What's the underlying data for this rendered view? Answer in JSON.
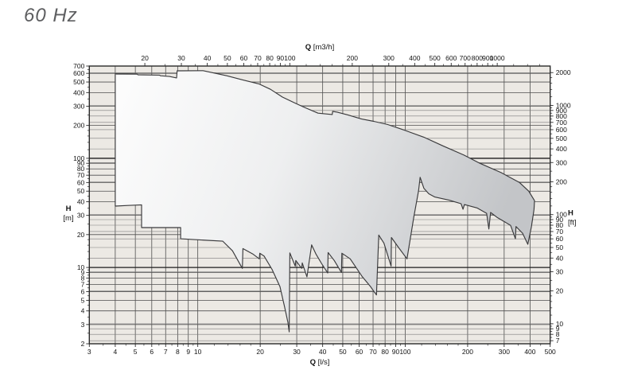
{
  "title": "60 Hz",
  "chart_data": {
    "type": "area",
    "title": "60 Hz",
    "description": "Pump family coverage envelope, head H versus flow Q, log-log scales, dual units",
    "axes": {
      "bottom": {
        "label_prefix": "Q",
        "label_unit": "[l/s]",
        "range_ls": [
          3,
          500
        ],
        "majors": [
          3,
          4,
          5,
          6,
          7,
          8,
          9,
          10,
          20,
          30,
          40,
          50,
          60,
          70,
          80,
          90,
          100,
          200,
          300,
          400,
          500
        ],
        "minors": [
          3.5,
          4.5,
          5.5,
          6.5,
          7.5,
          8.5,
          9.5,
          12,
          14,
          16,
          18,
          25,
          35,
          45,
          55,
          65,
          75,
          85,
          95,
          120,
          140,
          160,
          180,
          250,
          350,
          450
        ]
      },
      "top": {
        "label_prefix": "Q",
        "label_unit": "[m3/h]",
        "range_m3h": [
          10.8,
          1800
        ],
        "majors": [
          20,
          30,
          40,
          50,
          60,
          70,
          80,
          90,
          100,
          200,
          300,
          400,
          500,
          600,
          700,
          800,
          900,
          1000
        ],
        "minors": [
          25,
          35,
          45,
          55,
          65,
          75,
          85,
          95,
          120,
          140,
          160,
          180,
          250,
          350,
          450,
          550,
          650,
          750,
          850,
          950,
          1200,
          1400,
          1600
        ]
      },
      "left": {
        "label_prefix": "H",
        "label_unit": "[m]",
        "range_m": [
          2,
          700
        ],
        "majors": [
          2,
          3,
          4,
          5,
          6,
          7,
          8,
          9,
          10,
          20,
          30,
          40,
          50,
          60,
          70,
          80,
          90,
          100,
          200,
          300,
          400,
          500,
          600,
          700
        ],
        "minors": [
          2.5,
          3.5,
          4.5,
          5.5,
          6.5,
          7.5,
          8.5,
          9.5,
          12,
          14,
          16,
          18,
          25,
          35,
          45,
          55,
          65,
          75,
          85,
          95,
          120,
          140,
          160,
          180,
          250,
          350,
          450,
          550,
          650
        ]
      },
      "right": {
        "label_prefix": "H",
        "label_unit": "[ft]",
        "range_ft": [
          6.56,
          2297
        ],
        "majors": [
          7,
          8,
          9,
          10,
          20,
          30,
          40,
          50,
          60,
          70,
          80,
          90,
          100,
          200,
          300,
          400,
          500,
          600,
          700,
          800,
          900,
          1000,
          2000
        ],
        "minors": [
          7.5,
          8.5,
          9.5,
          12,
          14,
          16,
          18,
          25,
          35,
          45,
          55,
          65,
          75,
          85,
          95,
          120,
          140,
          160,
          180,
          250,
          350,
          450,
          550,
          650,
          750,
          850,
          950,
          1200,
          1400,
          1600,
          1800
        ]
      }
    },
    "gridlines": {
      "vertical_ls": [
        4,
        5,
        6,
        7,
        8,
        9,
        10,
        20,
        30,
        40,
        50,
        60,
        70,
        80,
        90,
        100,
        200,
        300,
        400
      ],
      "horizontal_m": [
        3,
        4,
        5,
        6,
        7,
        8,
        9,
        20,
        30,
        40,
        50,
        60,
        70,
        80,
        90,
        200,
        300,
        400,
        500,
        600
      ],
      "horizontal_m_heavy": [
        10,
        100
      ],
      "horizontal_ft": [
        7,
        8,
        9,
        10,
        20,
        30,
        40,
        50,
        60,
        70,
        80,
        90,
        100,
        200,
        300,
        400,
        500,
        600,
        700,
        800,
        900,
        1000,
        2000
      ]
    },
    "envelope_QH": [
      [
        4.0,
        597
      ],
      [
        4.05,
        592
      ],
      [
        5.1,
        590
      ],
      [
        5.15,
        582
      ],
      [
        6.55,
        578
      ],
      [
        6.6,
        570
      ],
      [
        7.3,
        562
      ],
      [
        7.9,
        545
      ],
      [
        7.95,
        633
      ],
      [
        10.6,
        635
      ],
      [
        13.8,
        570
      ],
      [
        16.4,
        524
      ],
      [
        19.7,
        481
      ],
      [
        22.4,
        429
      ],
      [
        25.6,
        364
      ],
      [
        29.7,
        318
      ],
      [
        33.3,
        288
      ],
      [
        38,
        259
      ],
      [
        44.5,
        252
      ],
      [
        44.7,
        269
      ],
      [
        47,
        265
      ],
      [
        52.7,
        250
      ],
      [
        61.7,
        229
      ],
      [
        70.6,
        218
      ],
      [
        82.3,
        204
      ],
      [
        96,
        185
      ],
      [
        123,
        156
      ],
      [
        152,
        130
      ],
      [
        192,
        107
      ],
      [
        229,
        90
      ],
      [
        290,
        74
      ],
      [
        356,
        60
      ],
      [
        394,
        50
      ],
      [
        420,
        41
      ],
      [
        418,
        34
      ],
      [
        406,
        23.6
      ],
      [
        390,
        16.3
      ],
      [
        368,
        20.6
      ],
      [
        342,
        23.7
      ],
      [
        340,
        18.3
      ],
      [
        322,
        24.3
      ],
      [
        277,
        28.8
      ],
      [
        258,
        31.9
      ],
      [
        253,
        22.5
      ],
      [
        247,
        31.3
      ],
      [
        222,
        35.1
      ],
      [
        193,
        37.7
      ],
      [
        190,
        34.2
      ],
      [
        186,
        38.4
      ],
      [
        163,
        41.3
      ],
      [
        139,
        44.2
      ],
      [
        130,
        47.3
      ],
      [
        123,
        53.1
      ],
      [
        118,
        67
      ],
      [
        116,
        50.3
      ],
      [
        110,
        28.8
      ],
      [
        102,
        12
      ],
      [
        93.2,
        15.1
      ],
      [
        85.8,
        18.8
      ],
      [
        85.5,
        10.3
      ],
      [
        79,
        16.7
      ],
      [
        74.6,
        19.8
      ],
      [
        72.7,
        5.6
      ],
      [
        68,
        6.7
      ],
      [
        61.9,
        8.3
      ],
      [
        54.3,
        12
      ],
      [
        49.5,
        13.5
      ],
      [
        49.3,
        9
      ],
      [
        45.5,
        11.6
      ],
      [
        42.5,
        13.7
      ],
      [
        42.3,
        8.9
      ],
      [
        39.5,
        10.9
      ],
      [
        37.2,
        13.2
      ],
      [
        35.4,
        16.1
      ],
      [
        33.6,
        8.2
      ],
      [
        31.9,
        11
      ],
      [
        31.7,
        9.8
      ],
      [
        29.7,
        11.6
      ],
      [
        29.5,
        10.3
      ],
      [
        27.8,
        13.6
      ],
      [
        27.6,
        2.57
      ],
      [
        27.2,
        3.13
      ],
      [
        26.2,
        4.38
      ],
      [
        24.9,
        6.66
      ],
      [
        22.8,
        9.6
      ],
      [
        20.9,
        12.7
      ],
      [
        19.9,
        13.5
      ],
      [
        19.8,
        12
      ],
      [
        18.4,
        13.3
      ],
      [
        16.5,
        14.9
      ],
      [
        16.4,
        9.8
      ],
      [
        14.7,
        14.2
      ],
      [
        13.2,
        17.4
      ],
      [
        8.27,
        18.3
      ],
      [
        8.27,
        23.2
      ],
      [
        5.36,
        23.2
      ],
      [
        5.36,
        37.5
      ],
      [
        4.6,
        37
      ],
      [
        4.0,
        36.5
      ]
    ],
    "colors": {
      "plot_bg": "#ece9e4",
      "grid": "#4f4f4f",
      "grid_ft": "#7c7c7c",
      "grid_heavy": "#1c1c1c",
      "frame": "#2b2b2b",
      "envelope_stroke": "#3a3a3c",
      "envelope_fill_light": "#fdfdfd",
      "envelope_fill_mid": "#eeeff0",
      "envelope_fill_dark": "#c3c5c8",
      "title_color": "#5d5e60",
      "text": "#141414"
    }
  }
}
